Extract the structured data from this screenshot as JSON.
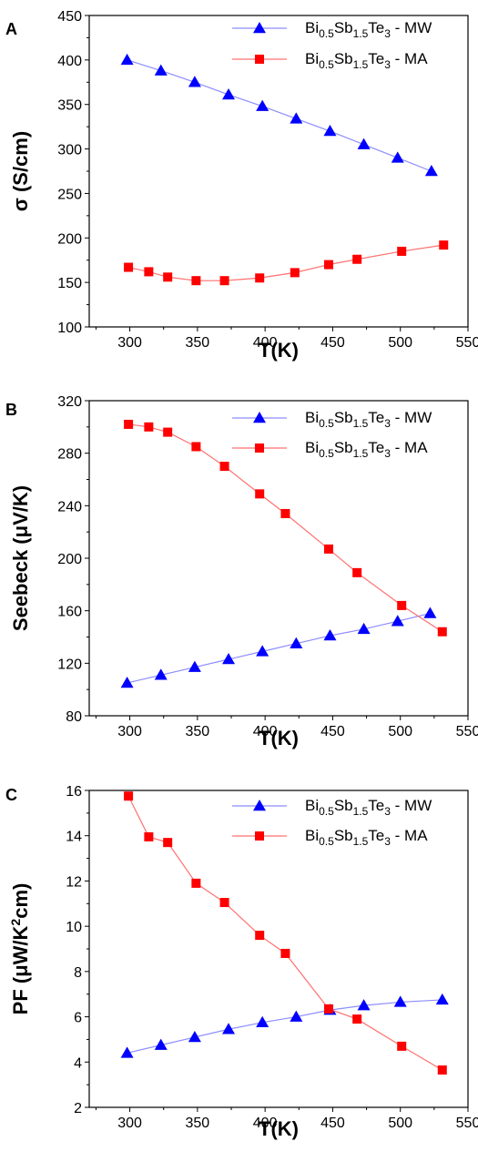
{
  "chart_data": [
    {
      "panel": "A",
      "type": "line",
      "xlabel": "T(K)",
      "ylabel": "σ (S/cm)",
      "xlim": [
        270,
        550
      ],
      "ylim": [
        100,
        450
      ],
      "xticks": [
        300,
        350,
        400,
        450,
        500,
        550
      ],
      "yticks": [
        100,
        150,
        200,
        250,
        300,
        350,
        400,
        450
      ],
      "legend_position": "top-right",
      "series": [
        {
          "name": "Bi0.5Sb1.5Te3 - MW",
          "marker": "triangle",
          "color": "#0000ff",
          "line_color": "#8c8cff",
          "x": [
            298,
            323,
            348,
            373,
            398,
            423,
            448,
            473,
            498,
            523
          ],
          "y": [
            400,
            388,
            375,
            361,
            348,
            334,
            320,
            305,
            290,
            275
          ]
        },
        {
          "name": "Bi0.5Sb1.5Te3 - MA",
          "marker": "square",
          "color": "#ff0000",
          "line_color": "#ff7070",
          "x": [
            299,
            314,
            328,
            349,
            370,
            396,
            422,
            447,
            468,
            501,
            532
          ],
          "y": [
            167,
            162,
            156,
            152,
            152,
            155,
            161,
            170,
            176,
            185,
            192
          ]
        }
      ]
    },
    {
      "panel": "B",
      "type": "line",
      "xlabel": "T(K)",
      "ylabel": "Seebeck (μV/K)",
      "xlim": [
        270,
        550
      ],
      "ylim": [
        80,
        320
      ],
      "xticks": [
        300,
        350,
        400,
        450,
        500,
        550
      ],
      "yticks": [
        80,
        120,
        160,
        200,
        240,
        280,
        320
      ],
      "legend_position": "top-right",
      "series": [
        {
          "name": "Bi0.5Sb1.5Te3 - MW",
          "marker": "triangle",
          "color": "#0000ff",
          "line_color": "#8c8cff",
          "x": [
            298,
            323,
            348,
            373,
            398,
            423,
            448,
            473,
            498,
            522
          ],
          "y": [
            105,
            111,
            117,
            123,
            129,
            135,
            141,
            146,
            152,
            158
          ]
        },
        {
          "name": "Bi0.5Sb1.5Te3 - MA",
          "marker": "square",
          "color": "#ff0000",
          "line_color": "#ff7070",
          "x": [
            299,
            314,
            328,
            349,
            370,
            396,
            415,
            447,
            468,
            501,
            531
          ],
          "y": [
            302,
            300,
            296,
            285,
            270,
            249,
            234,
            207,
            189,
            164,
            144
          ]
        }
      ]
    },
    {
      "panel": "C",
      "type": "line",
      "xlabel": "T(K)",
      "ylabel": "PF (μW/K²cm)",
      "xlim": [
        270,
        550
      ],
      "ylim": [
        2,
        16
      ],
      "xticks": [
        300,
        350,
        400,
        450,
        500,
        550
      ],
      "yticks": [
        2,
        4,
        6,
        8,
        10,
        12,
        14,
        16
      ],
      "legend_position": "top-right",
      "series": [
        {
          "name": "Bi0.5Sb1.5Te3 - MW",
          "marker": "triangle",
          "color": "#0000ff",
          "line_color": "#8c8cff",
          "x": [
            298,
            323,
            348,
            373,
            398,
            423,
            448,
            473,
            500,
            531
          ],
          "y": [
            4.4,
            4.75,
            5.1,
            5.45,
            5.75,
            6.0,
            6.3,
            6.5,
            6.65,
            6.75
          ]
        },
        {
          "name": "Bi0.5Sb1.5Te3 - MA",
          "marker": "square",
          "color": "#ff0000",
          "line_color": "#ff7070",
          "x": [
            299,
            314,
            328,
            349,
            370,
            396,
            415,
            447,
            468,
            501,
            531
          ],
          "y": [
            15.75,
            13.95,
            13.7,
            11.9,
            11.05,
            9.6,
            8.8,
            6.35,
            5.9,
            4.7,
            3.65
          ]
        }
      ]
    }
  ]
}
